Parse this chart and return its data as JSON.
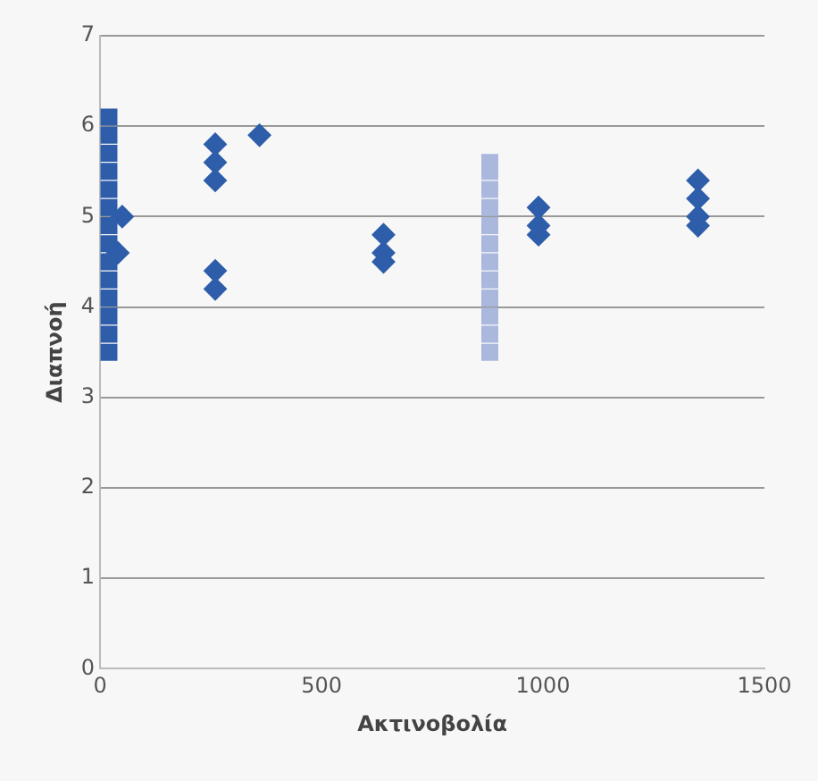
{
  "chart_data": {
    "type": "scatter",
    "xlabel": "Ακτινοβολία",
    "ylabel": "Διαπνοή",
    "xlim": [
      0,
      1500
    ],
    "xticks": [
      0,
      500,
      1000,
      1500
    ],
    "ylim": [
      0,
      7
    ],
    "yticks": [
      0,
      1,
      2,
      3,
      4,
      5,
      6,
      7
    ],
    "grid": "y",
    "legend": false,
    "series": [
      {
        "color": "#2e5daa",
        "marker": "square",
        "x": [
          20,
          20,
          20,
          20,
          20,
          20,
          20,
          20,
          20,
          20,
          20,
          20,
          20,
          20
        ],
        "values": [
          3.5,
          3.7,
          3.9,
          4.1,
          4.3,
          4.5,
          4.7,
          4.9,
          5.1,
          5.3,
          5.5,
          5.7,
          5.9,
          6.1
        ]
      },
      {
        "color": "#a9b8dc",
        "marker": "square",
        "x": [
          880,
          880,
          880,
          880,
          880,
          880,
          880,
          880,
          880,
          880,
          880,
          880
        ],
        "values": [
          3.5,
          3.7,
          3.9,
          4.1,
          4.3,
          4.5,
          4.7,
          4.9,
          5.1,
          5.3,
          5.5,
          5.6
        ]
      },
      {
        "color": "#2e5daa",
        "marker": "diamond",
        "x": [
          40,
          50,
          260,
          260,
          260,
          260,
          260,
          360,
          640,
          640,
          640,
          990,
          990,
          990,
          1350,
          1350,
          1350,
          1350
        ],
        "values": [
          4.6,
          5.0,
          5.8,
          5.6,
          5.4,
          4.4,
          4.2,
          5.9,
          4.8,
          4.6,
          4.5,
          5.1,
          4.9,
          4.8,
          5.4,
          5.2,
          5.0,
          4.9
        ]
      }
    ]
  }
}
